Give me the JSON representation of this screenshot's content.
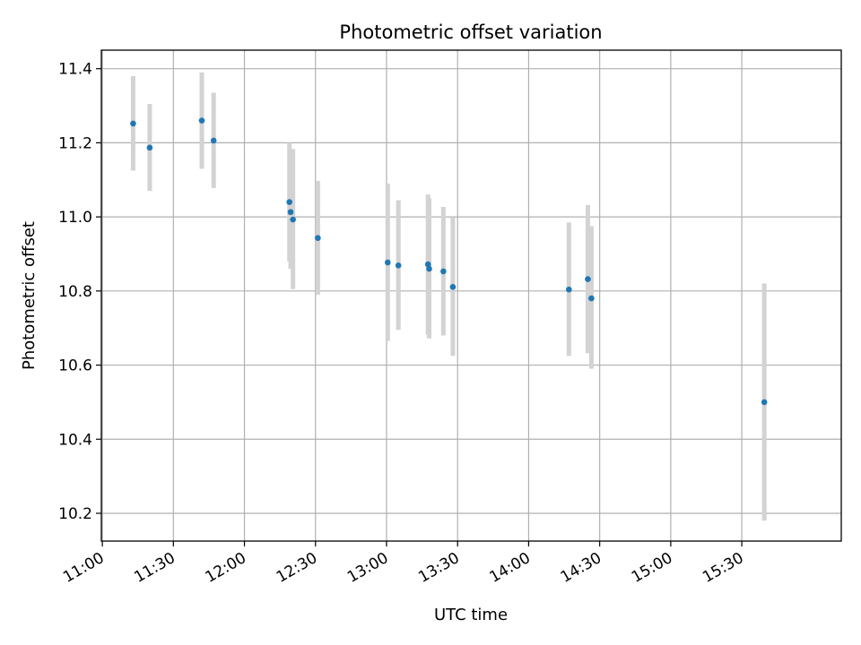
{
  "chart_data": {
    "type": "scatter",
    "title": "Photometric offset variation",
    "xlabel": "UTC time",
    "ylabel": "Photometric offset",
    "x_tick_labels": [
      "11:00",
      "11:30",
      "12:00",
      "12:30",
      "13:00",
      "13:30",
      "14:00",
      "14:30",
      "15:00",
      "15:30"
    ],
    "y_tick_labels": [
      "10.2",
      "10.4",
      "10.6",
      "10.8",
      "11.0",
      "11.2",
      "11.4"
    ],
    "xlim": [
      "10:59:35",
      "16:12:00"
    ],
    "ylim": [
      10.125,
      11.45
    ],
    "grid": true,
    "colors": {
      "points": "#1f77b4",
      "error_bars": "#d3d3d3"
    },
    "points": [
      {
        "x": "11:13:00",
        "y": 11.252,
        "ylow": 11.125,
        "yhigh": 11.38
      },
      {
        "x": "11:20:00",
        "y": 11.187,
        "ylow": 11.07,
        "yhigh": 11.305
      },
      {
        "x": "11:42:00",
        "y": 11.26,
        "ylow": 11.13,
        "yhigh": 11.39
      },
      {
        "x": "11:47:00",
        "y": 11.206,
        "ylow": 11.078,
        "yhigh": 11.335
      },
      {
        "x": "12:19:00",
        "y": 11.04,
        "ylow": 10.88,
        "yhigh": 11.2
      },
      {
        "x": "12:19:30",
        "y": 11.013,
        "ylow": 10.86,
        "yhigh": 11.165
      },
      {
        "x": "12:20:30",
        "y": 10.993,
        "ylow": 10.805,
        "yhigh": 11.183
      },
      {
        "x": "12:31:00",
        "y": 10.943,
        "ylow": 10.79,
        "yhigh": 11.097
      },
      {
        "x": "13:00:30",
        "y": 10.877,
        "ylow": 10.665,
        "yhigh": 11.09
      },
      {
        "x": "13:05:00",
        "y": 10.869,
        "ylow": 10.695,
        "yhigh": 11.045
      },
      {
        "x": "13:17:30",
        "y": 10.872,
        "ylow": 10.682,
        "yhigh": 11.06
      },
      {
        "x": "13:18:00",
        "y": 10.86,
        "ylow": 10.672,
        "yhigh": 11.05
      },
      {
        "x": "13:24:00",
        "y": 10.853,
        "ylow": 10.68,
        "yhigh": 11.027
      },
      {
        "x": "13:28:00",
        "y": 10.811,
        "ylow": 10.625,
        "yhigh": 10.998
      },
      {
        "x": "14:17:00",
        "y": 10.804,
        "ylow": 10.625,
        "yhigh": 10.985
      },
      {
        "x": "14:25:00",
        "y": 10.832,
        "ylow": 10.632,
        "yhigh": 11.032
      },
      {
        "x": "14:26:30",
        "y": 10.78,
        "ylow": 10.59,
        "yhigh": 10.975
      },
      {
        "x": "15:39:30",
        "y": 10.5,
        "ylow": 10.18,
        "yhigh": 10.82
      }
    ]
  }
}
